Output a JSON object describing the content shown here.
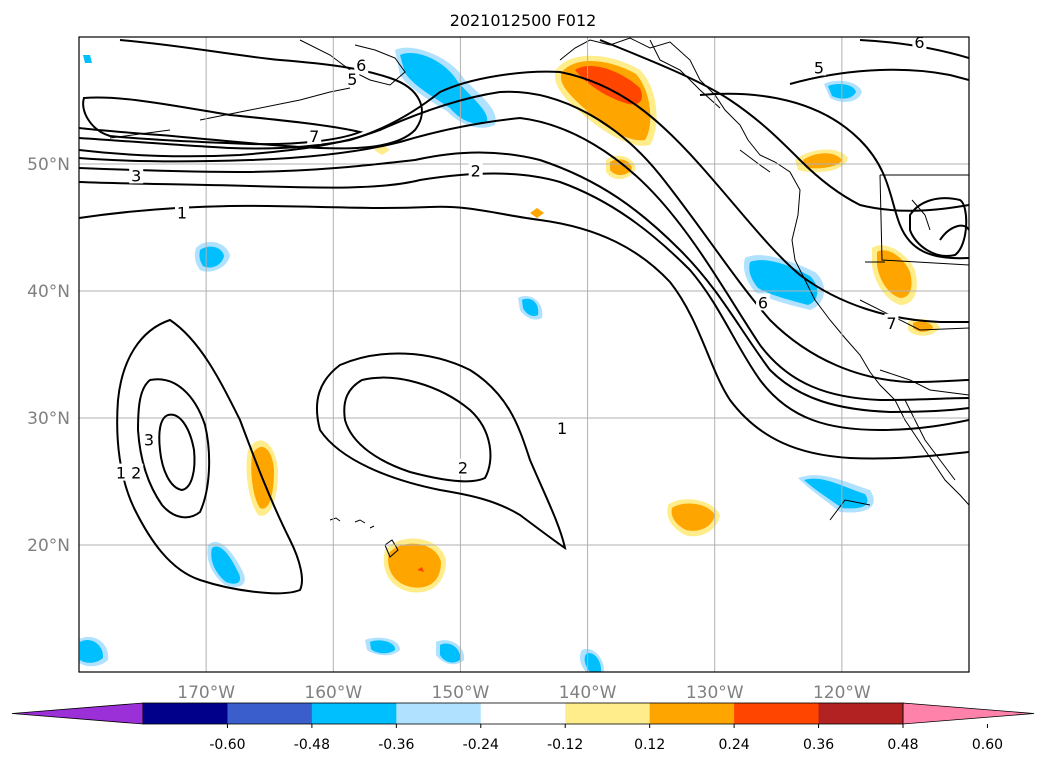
{
  "title": "2021012500 F012",
  "map": {
    "lon_range": [
      -180,
      -110
    ],
    "lat_range": [
      10,
      60
    ],
    "lon_ticks": [
      {
        "value": -170,
        "label": "170°W"
      },
      {
        "value": -160,
        "label": "160°W"
      },
      {
        "value": -150,
        "label": "150°W"
      },
      {
        "value": -140,
        "label": "140°W"
      },
      {
        "value": -130,
        "label": "130°W"
      },
      {
        "value": -120,
        "label": "120°W"
      }
    ],
    "lat_ticks": [
      {
        "value": 20,
        "label": "20°N"
      },
      {
        "value": 30,
        "label": "30°N"
      },
      {
        "value": 40,
        "label": "40°N"
      },
      {
        "value": 50,
        "label": "50°N"
      }
    ],
    "grid": true
  },
  "contour_labels": [
    {
      "text": "6",
      "lon": -157.8,
      "lat": 57.8
    },
    {
      "text": "5",
      "lon": -158.5,
      "lat": 56.7
    },
    {
      "text": "7",
      "lon": -161.5,
      "lat": 52.2
    },
    {
      "text": "3",
      "lon": -175.5,
      "lat": 49.1
    },
    {
      "text": "2",
      "lon": -148.8,
      "lat": 49.5
    },
    {
      "text": "1",
      "lon": -171.9,
      "lat": 46.2
    },
    {
      "text": "5",
      "lon": -121.8,
      "lat": 57.6
    },
    {
      "text": "6",
      "lon": -113.9,
      "lat": 59.6
    },
    {
      "text": "6",
      "lon": -126.2,
      "lat": 39.1
    },
    {
      "text": "7",
      "lon": -116.1,
      "lat": 37.5
    },
    {
      "text": "3",
      "lon": -174.5,
      "lat": 28.3
    },
    {
      "text": "2",
      "lon": -175.5,
      "lat": 25.7
    },
    {
      "text": "1",
      "lon": -176.7,
      "lat": 25.7
    },
    {
      "text": "1",
      "lon": -142.0,
      "lat": 29.2
    },
    {
      "text": "2",
      "lon": -149.8,
      "lat": 26.1
    }
  ],
  "colorbar": {
    "tick_labels": [
      "-0.60",
      "-0.48",
      "-0.36",
      "-0.24",
      "-0.12",
      "0.12",
      "0.24",
      "0.36",
      "0.48",
      "0.60"
    ],
    "colors": [
      "#9b30d9",
      "#00008b",
      "#3a5fcd",
      "#00bfff",
      "#b0e2ff",
      "#ffffff",
      "#ffec8b",
      "#ffa500",
      "#ff4500",
      "#b22222",
      "#ff82ab"
    ]
  }
}
